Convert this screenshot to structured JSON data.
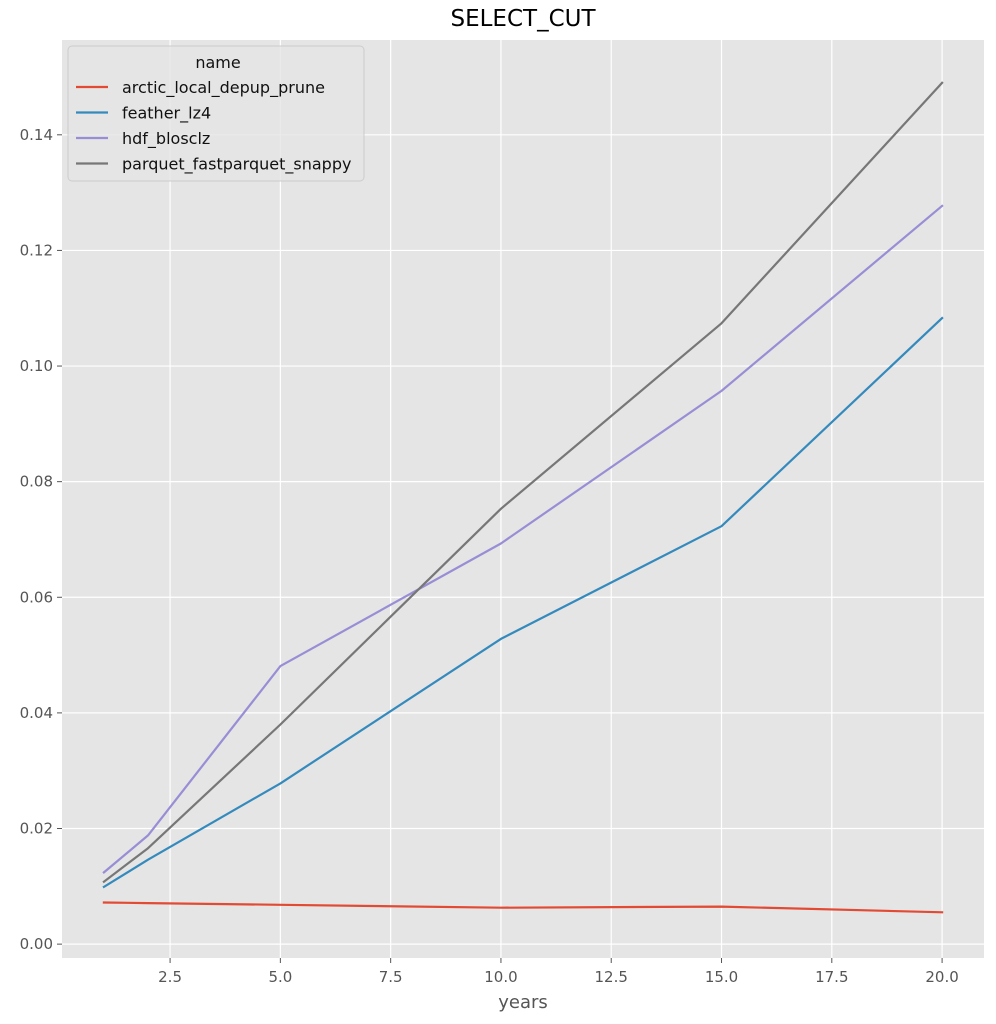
{
  "chart_data": {
    "type": "line",
    "title": "SELECT_CUT",
    "xlabel": "years",
    "ylabel": "",
    "x": [
      1,
      2,
      5,
      10,
      15,
      20
    ],
    "xlim": [
      0.05,
      20.95
    ],
    "ylim": [
      -0.0024,
      0.1564
    ],
    "xticks": [
      "2.5",
      "5.0",
      "7.5",
      "10.0",
      "12.5",
      "15.0",
      "17.5",
      "20.0"
    ],
    "yticks": [
      "0.00",
      "0.02",
      "0.04",
      "0.06",
      "0.08",
      "0.10",
      "0.12",
      "0.14"
    ],
    "grid": true,
    "legend": {
      "title": "name",
      "placement": "top-left"
    },
    "series": [
      {
        "name": "arctic_local_depup_prune",
        "color": "#e24a33",
        "values": [
          0.0072,
          0.0071,
          0.0068,
          0.0063,
          0.0065,
          0.0055
        ]
      },
      {
        "name": "feather_lz4",
        "color": "#348abd",
        "values": [
          0.0099,
          0.0146,
          0.0278,
          0.0528,
          0.0723,
          0.1083
        ]
      },
      {
        "name": "hdf_blosclz",
        "color": "#988ed5",
        "values": [
          0.0124,
          0.0188,
          0.0481,
          0.0693,
          0.0957,
          0.1277
        ]
      },
      {
        "name": "parquet_fastparquet_snappy",
        "color": "#777777",
        "values": [
          0.0108,
          0.0166,
          0.038,
          0.0753,
          0.1074,
          0.149
        ]
      }
    ]
  }
}
